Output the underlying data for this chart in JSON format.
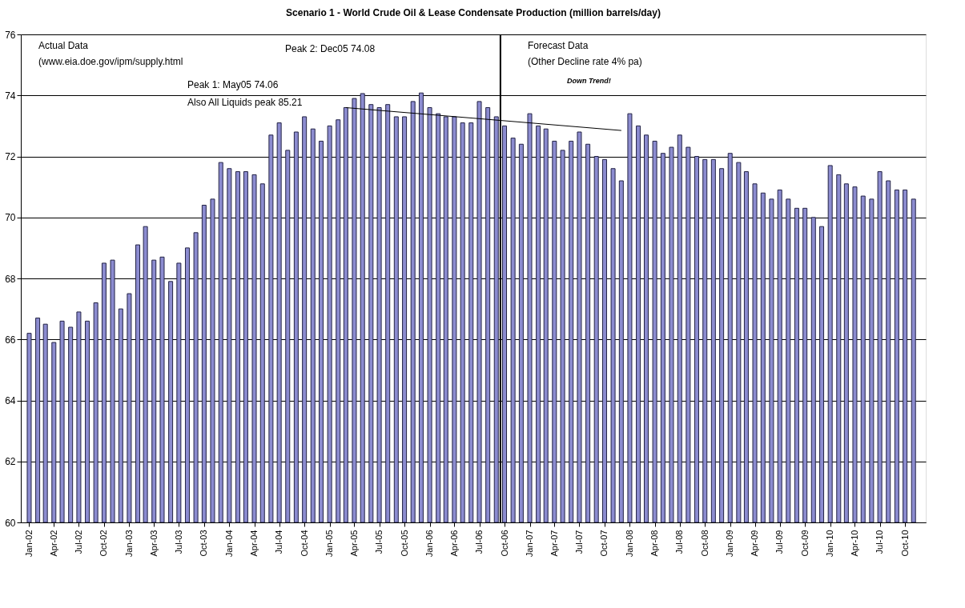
{
  "chart_data": {
    "type": "bar",
    "title": "Scenario 1 - World Crude Oil & Lease Condensate Production (million barrels/day)",
    "x": [
      "2002-01",
      "2002-02",
      "2002-03",
      "2002-04",
      "2002-05",
      "2002-06",
      "2002-07",
      "2002-08",
      "2002-09",
      "2002-10",
      "2002-11",
      "2002-12",
      "2003-01",
      "2003-02",
      "2003-03",
      "2003-04",
      "2003-05",
      "2003-06",
      "2003-07",
      "2003-08",
      "2003-09",
      "2003-10",
      "2003-11",
      "2003-12",
      "2004-01",
      "2004-02",
      "2004-03",
      "2004-04",
      "2004-05",
      "2004-06",
      "2004-07",
      "2004-08",
      "2004-09",
      "2004-10",
      "2004-11",
      "2004-12",
      "2005-01",
      "2005-02",
      "2005-03",
      "2005-04",
      "2005-05",
      "2005-06",
      "2005-07",
      "2005-08",
      "2005-09",
      "2005-10",
      "2005-11",
      "2005-12",
      "2006-01",
      "2006-02",
      "2006-03",
      "2006-04",
      "2006-05",
      "2006-06",
      "2006-07",
      "2006-08",
      "2006-09",
      "2006-10",
      "2006-11",
      "2006-12",
      "2007-01",
      "2007-02",
      "2007-03",
      "2007-04",
      "2007-05",
      "2007-06",
      "2007-07",
      "2007-08",
      "2007-09",
      "2007-10",
      "2007-11",
      "2007-12",
      "2008-01",
      "2008-02",
      "2008-03",
      "2008-04",
      "2008-05",
      "2008-06",
      "2008-07",
      "2008-08",
      "2008-09",
      "2008-10",
      "2008-11",
      "2008-12",
      "2009-01",
      "2009-02",
      "2009-03",
      "2009-04",
      "2009-05",
      "2009-06",
      "2009-07",
      "2009-08",
      "2009-09",
      "2009-10",
      "2009-11",
      "2009-12",
      "2010-01",
      "2010-02",
      "2010-03",
      "2010-04",
      "2010-05",
      "2010-06",
      "2010-07",
      "2010-08",
      "2010-09",
      "2010-10",
      "2010-11"
    ],
    "series": [
      {
        "color": "#8c8cd0",
        "values": [
          66.2,
          66.7,
          66.5,
          65.9,
          66.6,
          66.4,
          66.9,
          66.6,
          67.2,
          68.5,
          68.6,
          67.0,
          67.5,
          69.1,
          69.7,
          68.6,
          68.7,
          67.9,
          68.5,
          69.0,
          69.5,
          70.4,
          70.6,
          71.8,
          71.6,
          71.5,
          71.5,
          71.4,
          71.1,
          72.7,
          73.1,
          72.2,
          72.8,
          73.3,
          72.9,
          72.5,
          73.0,
          73.2,
          73.6,
          73.9,
          74.06,
          73.7,
          73.6,
          73.7,
          73.3,
          73.3,
          73.8,
          74.08,
          73.6,
          73.4,
          73.3,
          73.3,
          73.1,
          73.1,
          73.8,
          73.6,
          73.3,
          73.0,
          72.6,
          72.4,
          73.4,
          73.0,
          72.9,
          72.5,
          72.2,
          72.5,
          72.8,
          72.4,
          72.0,
          71.9,
          71.6,
          71.2,
          73.4,
          73.0,
          72.7,
          72.5,
          72.1,
          72.3,
          72.7,
          72.3,
          72.0,
          71.9,
          71.9,
          71.6,
          72.1,
          71.8,
          71.5,
          71.1,
          70.8,
          70.6,
          70.9,
          70.6,
          70.3,
          70.3,
          70.0,
          69.7,
          71.7,
          71.4,
          71.1,
          71.0,
          70.7,
          70.6,
          71.5,
          71.2,
          70.9,
          70.9,
          70.6
        ]
      },
      {
        "type": "line",
        "color": "#000000",
        "x": [
          "2005-03",
          "2007-12"
        ],
        "values": [
          73.6,
          72.85
        ]
      }
    ],
    "xlim": [
      "2001-12-16",
      "2010-12-01"
    ],
    "xticks": [
      {
        "value": "2002-01",
        "label": "Jan-02"
      },
      {
        "value": "2002-04",
        "label": "Apr-02"
      },
      {
        "value": "2002-07",
        "label": "Jul-02"
      },
      {
        "value": "2002-10",
        "label": "Oct-02"
      },
      {
        "value": "2003-01",
        "label": "Jan-03"
      },
      {
        "value": "2003-04",
        "label": "Apr-03"
      },
      {
        "value": "2003-07",
        "label": "Jul-03"
      },
      {
        "value": "2003-10",
        "label": "Oct-03"
      },
      {
        "value": "2004-01",
        "label": "Jan-04"
      },
      {
        "value": "2004-04",
        "label": "Apr-04"
      },
      {
        "value": "2004-07",
        "label": "Jul-04"
      },
      {
        "value": "2004-10",
        "label": "Oct-04"
      },
      {
        "value": "2005-01",
        "label": "Jan-05"
      },
      {
        "value": "2005-04",
        "label": "Apr-05"
      },
      {
        "value": "2005-07",
        "label": "Jul-05"
      },
      {
        "value": "2005-10",
        "label": "Oct-05"
      },
      {
        "value": "2006-01",
        "label": "Jan-06"
      },
      {
        "value": "2006-04",
        "label": "Apr-06"
      },
      {
        "value": "2006-07",
        "label": "Jul-06"
      },
      {
        "value": "2006-10",
        "label": "Oct-06"
      },
      {
        "value": "2007-01",
        "label": "Jan-07"
      },
      {
        "value": "2007-04",
        "label": "Apr-07"
      },
      {
        "value": "2007-07",
        "label": "Jul-07"
      },
      {
        "value": "2007-10",
        "label": "Oct-07"
      },
      {
        "value": "2008-01",
        "label": "Jan-08"
      },
      {
        "value": "2008-04",
        "label": "Apr-08"
      },
      {
        "value": "2008-07",
        "label": "Jul-08"
      },
      {
        "value": "2008-10",
        "label": "Oct-08"
      },
      {
        "value": "2009-01",
        "label": "Jan-09"
      },
      {
        "value": "2009-04",
        "label": "Apr-09"
      },
      {
        "value": "2009-07",
        "label": "Jul-09"
      },
      {
        "value": "2009-10",
        "label": "Oct-09"
      },
      {
        "value": "2010-01",
        "label": "Jan-10"
      },
      {
        "value": "2010-04",
        "label": "Apr-10"
      },
      {
        "value": "2010-07",
        "label": "Jul-10"
      },
      {
        "value": "2010-10",
        "label": "Oct-10"
      }
    ],
    "ylim": [
      60,
      76
    ],
    "yticks": [
      60,
      62,
      64,
      66,
      68,
      70,
      72,
      74,
      76
    ],
    "grid": "y",
    "ref_lines": [
      {
        "axis": "x",
        "value": "2006-09-16",
        "color": "#000000"
      }
    ],
    "annotations": [
      "Actual Data",
      "(www.eia.doe.gov/ipm/supply.html",
      "Peak 1: May05 74.06",
      "Also All Liquids peak 85.21",
      "Peak 2: Dec05 74.08",
      "Forecast Data",
      "(Other Decline rate 4% pa)",
      "Down Trend!"
    ]
  }
}
